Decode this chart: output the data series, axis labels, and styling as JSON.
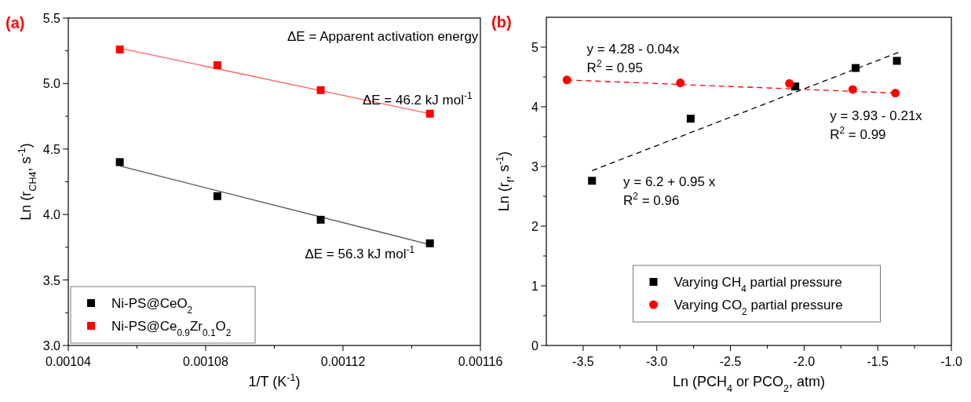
{
  "chart_data": [
    {
      "type": "scatter",
      "title": "(a)",
      "xlabel": "1/T (K$^{-1}$)",
      "ylabel": "Ln (r$_{CH4}$, s$^{-1}$)",
      "xlim": [
        0.00104,
        0.00116
      ],
      "xticks": [
        0.00104,
        {
          "value": 0.00106,
          "label": null
        },
        0.00108,
        {
          "value": 0.0011,
          "label": null
        },
        0.00112,
        {
          "value": 0.00114,
          "label": null
        },
        0.00116
      ],
      "ylim": [
        3.0,
        5.5
      ],
      "yticks": [
        {
          "value": 3,
          "label": "3.0"
        },
        {
          "value": 3.25,
          "label": null
        },
        3.5,
        {
          "value": 3.75,
          "label": null
        },
        {
          "value": 4,
          "label": "4.0"
        },
        {
          "value": 4.25,
          "label": null
        },
        4.5,
        {
          "value": 4.75,
          "label": null
        },
        {
          "value": 5,
          "label": "5.0"
        },
        {
          "value": 5.25,
          "label": null
        },
        5.5
      ],
      "grid": false,
      "legend": "bottom left",
      "series": [
        {
          "name": "Ni-PS@CeO$_{2}$",
          "color": "#000000",
          "marker": "square",
          "x": [
            0.001055,
            0.0010834,
            0.0011135,
            0.0011453
          ],
          "values": [
            4.4,
            4.14,
            3.96,
            3.78
          ]
        },
        {
          "name": "Ni-PS@Ce$_{0.9}$Zr$_{0.1}$O$_{2}$",
          "color": "#ff0000",
          "marker": "square",
          "x": [
            0.001055,
            0.0010834,
            0.0011135,
            0.0011453
          ],
          "values": [
            5.26,
            5.14,
            4.95,
            4.77
          ]
        },
        {
          "type": "line",
          "color": "#555555",
          "line_style": "solid",
          "x": [
            0.001055,
            0.0011453
          ],
          "values": [
            4.37,
            3.77
          ]
        },
        {
          "type": "line",
          "color": "#ff6060",
          "line_style": "solid",
          "x": [
            0.001055,
            0.0011453
          ],
          "values": [
            5.27,
            4.77
          ]
        }
      ],
      "annotations": [
        "ΔE = Apparent activation energy",
        "ΔE = 46.2 kJ mol$^{-1}$",
        "ΔE = 56.3 kJ mol$^{-1}$"
      ]
    },
    {
      "type": "scatter",
      "title": "(b)",
      "xlabel": "Ln (PCH$_{4}$ or PCO$_{2}$, atm)",
      "ylabel": "Ln (r$_{f}$, s$^{-1}$)",
      "xlim": [
        -3.75,
        -1.0
      ],
      "xticks": [
        -3.5,
        {
          "value": -3.25,
          "label": null
        },
        {
          "value": -3,
          "label": "-3.0"
        },
        {
          "value": -2.75,
          "label": null
        },
        -2.5,
        {
          "value": -2.25,
          "label": null
        },
        {
          "value": -2,
          "label": "-2.0"
        },
        {
          "value": -1.75,
          "label": null
        },
        -1.5,
        {
          "value": -1.25,
          "label": null
        },
        {
          "value": -1,
          "label": "-1.0"
        }
      ],
      "ylim": [
        0,
        5.5
      ],
      "yticks": [
        0,
        {
          "value": 0.5,
          "label": null
        },
        1,
        {
          "value": 1.5,
          "label": null
        },
        2,
        {
          "value": 2.5,
          "label": null
        },
        3,
        {
          "value": 3.5,
          "label": null
        },
        4,
        {
          "value": 4.5,
          "label": null
        },
        5
      ],
      "grid": false,
      "legend": "bottom",
      "series": [
        {
          "name": "Varying CH$_{4}$ partial pressure",
          "color": "#000000",
          "marker": "square",
          "x": [
            -3.44,
            -2.77,
            -2.06,
            -1.65,
            -1.37
          ],
          "values": [
            2.76,
            3.8,
            4.34,
            4.65,
            4.77
          ]
        },
        {
          "name": "Varying CO$_{2}$ partial pressure",
          "color": "#ff0000",
          "marker": "circle",
          "x": [
            -3.61,
            -2.84,
            -2.1,
            -1.67,
            -1.38
          ],
          "values": [
            4.45,
            4.4,
            4.39,
            4.29,
            4.23
          ]
        },
        {
          "type": "line",
          "color": "#000000",
          "line_style": "dashed",
          "x": [
            -3.44,
            -1.36
          ],
          "values": [
            2.93,
            4.91
          ]
        },
        {
          "type": "line",
          "color": "#ff0000",
          "line_style": "dashed",
          "x": [
            -3.61,
            -1.38
          ],
          "values": [
            4.45,
            4.23
          ]
        }
      ],
      "annotations": [
        "y = 4.28 - 0.04x\nR$^{2}$ = 0.95",
        "y = 3.93 - 0.21x\nR$^{2}$ = 0.99",
        "y = 6.2 + 0.95 x\nR$^{2}$ = 0.96"
      ]
    }
  ]
}
